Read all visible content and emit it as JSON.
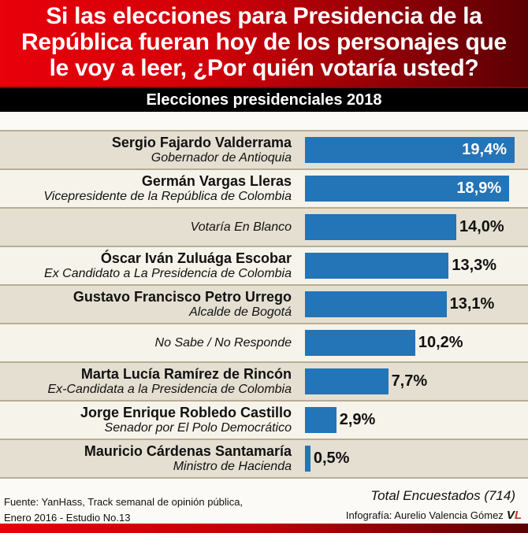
{
  "header": {
    "title_lines": [
      "Si las elecciones para Presidencia de la",
      "República fueran hoy de los personajes que",
      "le voy a leer, ¿Por quién votaría usted?"
    ],
    "subtitle": "Elecciones presidenciales 2018"
  },
  "chart_data": {
    "type": "bar",
    "orientation": "horizontal",
    "title": "Si las elecciones para Presidencia de la República fueran hoy de los personajes que le voy a leer, ¿Por quién votaría usted?",
    "subtitle": "Elecciones presidenciales 2018",
    "unit": "%",
    "categories": [
      {
        "name": "Sergio Fajardo Valderrama",
        "desc": "Gobernador de Antioquia",
        "value": 19.4,
        "label": "19,4%"
      },
      {
        "name": "Germán Vargas Lleras",
        "desc": "Vicepresidente de la República de Colombia",
        "value": 18.9,
        "label": "18,9%"
      },
      {
        "name": "",
        "desc": "Votaría En Blanco",
        "value": 14.0,
        "label": "14,0%"
      },
      {
        "name": "Óscar Iván Zuluága Escobar",
        "desc": "Ex Candidato a La Presidencia de Colombia",
        "value": 13.3,
        "label": "13,3%"
      },
      {
        "name": "Gustavo Francisco Petro Urrego",
        "desc": "Alcalde de Bogotá",
        "value": 13.1,
        "label": "13,1%"
      },
      {
        "name": "",
        "desc": "No Sabe / No Responde",
        "value": 10.2,
        "label": "10,2%"
      },
      {
        "name": "Marta Lucía Ramírez de Rincón",
        "desc": "Ex-Candidata a la Presidencia de Colombia",
        "value": 7.7,
        "label": "7,7%"
      },
      {
        "name": "Jorge Enrique Robledo Castillo",
        "desc": "Senador  por El Polo Democrático",
        "value": 2.9,
        "label": "2,9%"
      },
      {
        "name": "Mauricio Cárdenas Santamaría",
        "desc": "Ministro de Hacienda",
        "value": 0.5,
        "label": "0,5%"
      }
    ],
    "xlim": [
      0,
      20
    ],
    "bar_color": "#2474b8",
    "grid": false
  },
  "footer": {
    "source_line1": "Fuente: YanHass, Track semanal de opinión pública,",
    "source_line2": "Enero 2016 - Estudio No.13",
    "total": "Total Encuestados  (714)",
    "credit": "Infografía: Aurelio Valencia Gómez",
    "logo_text": "VL"
  }
}
